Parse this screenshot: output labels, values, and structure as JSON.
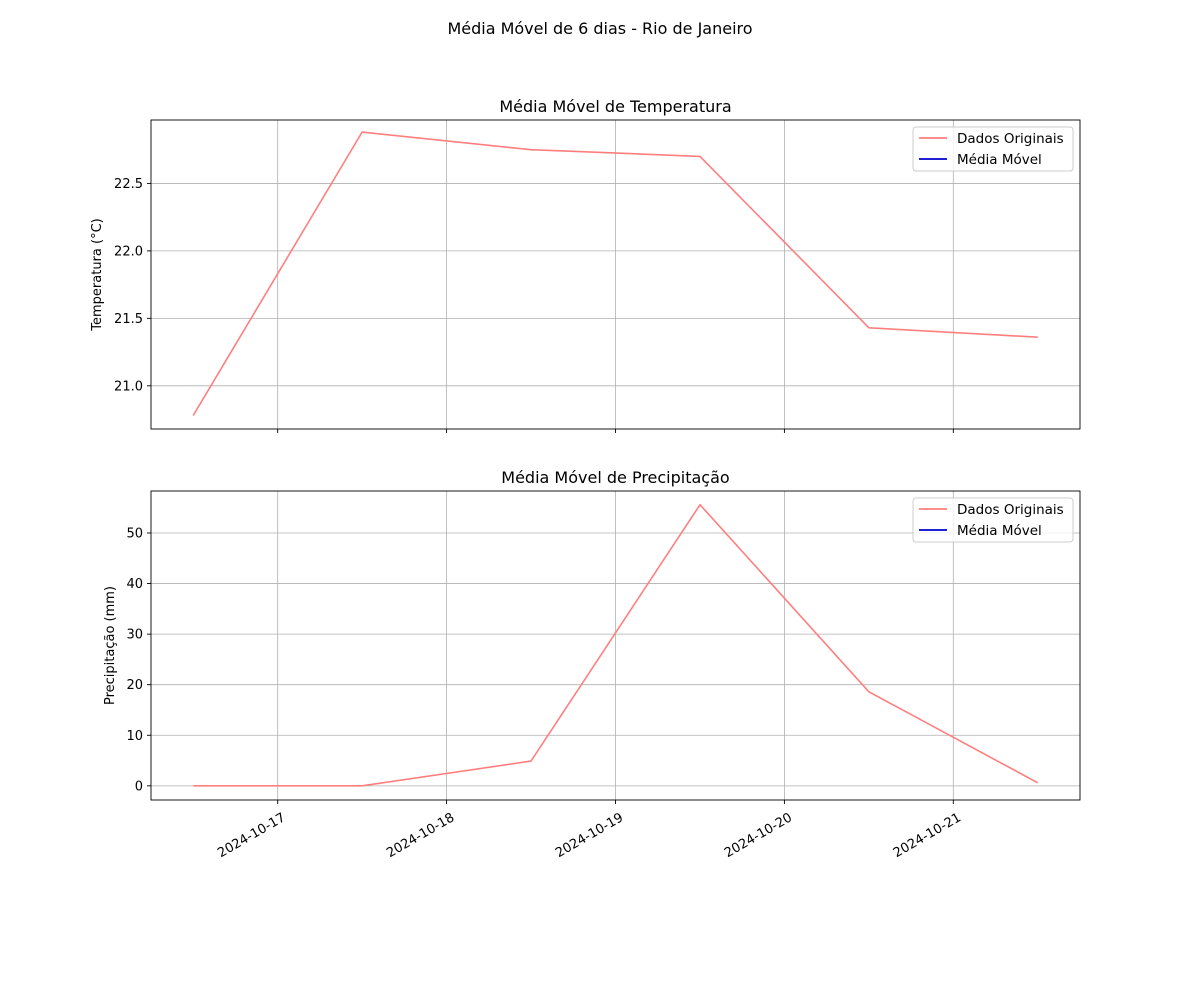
{
  "figure": {
    "title": "Média Móvel de 6 dias - Rio de Janeiro"
  },
  "chart_data": [
    {
      "type": "line",
      "title": "Média Móvel de Temperatura",
      "xlabel": "",
      "ylabel": "Temperatura (°C)",
      "x": [
        "2024-10-16T12:00",
        "2024-10-17T12:00",
        "2024-10-18T12:00",
        "2024-10-19T12:00",
        "2024-10-20T12:00",
        "2024-10-21T12:00"
      ],
      "xlim": [
        "2024-10-16T06:00",
        "2024-10-21T18:00"
      ],
      "xticks": [
        "2024-10-17",
        "2024-10-18",
        "2024-10-19",
        "2024-10-20",
        "2024-10-21"
      ],
      "ylim": [
        20.68,
        22.97
      ],
      "yticks": [
        21.0,
        21.5,
        22.0,
        22.5
      ],
      "ytick_labels": [
        "21.0",
        "21.5",
        "22.0",
        "22.5"
      ],
      "grid": true,
      "legend": "top-right",
      "series": [
        {
          "name": "Dados Originais",
          "color": "#ff7f7f",
          "values": [
            20.78,
            22.88,
            22.75,
            22.7,
            21.43,
            21.36
          ]
        },
        {
          "name": "Média Móvel",
          "color": "#0000cc",
          "values": [
            null,
            null,
            null,
            null,
            null,
            null
          ]
        }
      ]
    },
    {
      "type": "line",
      "title": "Média Móvel de Precipitação",
      "xlabel": "",
      "ylabel": "Precipitação (mm)",
      "x": [
        "2024-10-16T12:00",
        "2024-10-17T12:00",
        "2024-10-18T12:00",
        "2024-10-19T12:00",
        "2024-10-20T12:00",
        "2024-10-21T12:00"
      ],
      "xlim": [
        "2024-10-16T06:00",
        "2024-10-21T18:00"
      ],
      "xticks": [
        "2024-10-17",
        "2024-10-18",
        "2024-10-19",
        "2024-10-20",
        "2024-10-21"
      ],
      "xtick_labels": [
        "2024-10-17",
        "2024-10-18",
        "2024-10-19",
        "2024-10-20",
        "2024-10-21"
      ],
      "ylim": [
        -2.8,
        58.3
      ],
      "yticks": [
        0,
        10,
        20,
        30,
        40,
        50
      ],
      "ytick_labels": [
        "0",
        "10",
        "20",
        "30",
        "40",
        "50"
      ],
      "grid": true,
      "legend": "top-right",
      "series": [
        {
          "name": "Dados Originais",
          "color": "#ff7f7f",
          "values": [
            0.0,
            0.0,
            4.9,
            55.6,
            18.6,
            0.6
          ]
        },
        {
          "name": "Média Móvel",
          "color": "#0000cc",
          "values": [
            null,
            null,
            null,
            null,
            null,
            null
          ]
        }
      ]
    }
  ]
}
